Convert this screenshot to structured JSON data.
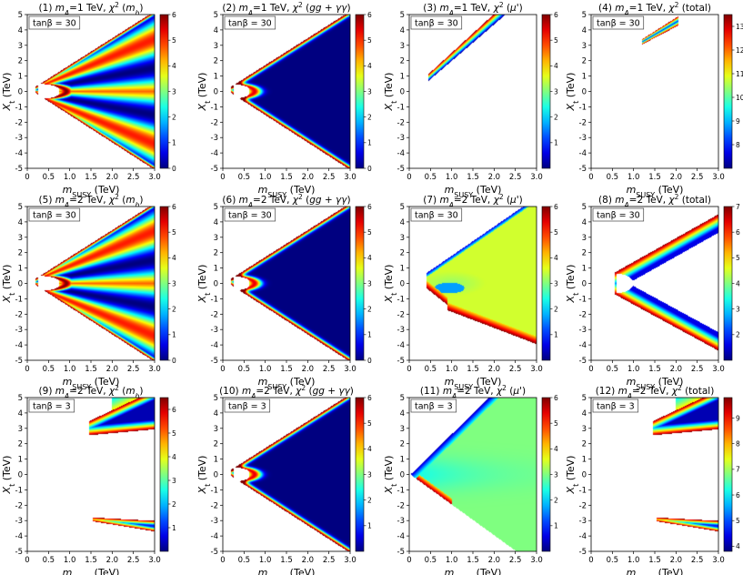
{
  "chart_data": [
    {
      "type": "heatmap",
      "title": "(1) m_A=1 TeV, χ² (m_h)",
      "title_parts": [
        "(1) ",
        "m",
        "A",
        "=1 TeV, ",
        "χ",
        "2",
        " (",
        "m",
        "h",
        ")"
      ],
      "annotation": "tanβ = 30",
      "xlabel_parts": [
        "m",
        "SUSY",
        " (TeV)"
      ],
      "ylabel_parts": [
        "X",
        "t",
        " (TeV)"
      ],
      "xlim": [
        0,
        3
      ],
      "ylim": [
        -5,
        5
      ],
      "xticks": [
        "0",
        "0.5",
        "1.0",
        "1.5",
        "2.0",
        "2.5",
        "3.0"
      ],
      "yticks": [
        "-5",
        "-4",
        "-3",
        "-2",
        "-1",
        "0",
        "1",
        "2",
        "3",
        "4",
        "5"
      ],
      "colorbar": {
        "min": 0,
        "max": 6,
        "ticks": [
          "0",
          "1",
          "2",
          "3",
          "4",
          "5",
          "6"
        ]
      },
      "pattern": "mh_large"
    },
    {
      "type": "heatmap",
      "title": "(2) m_A=1 TeV, χ² (gg+γγ)",
      "title_parts": [
        "(2) ",
        "m",
        "A",
        "=1 TeV, ",
        "χ",
        "2",
        " (",
        "gg + γγ",
        ")"
      ],
      "annotation": "tanβ = 30",
      "xlabel_parts": [
        "m",
        "SUSY",
        " (TeV)"
      ],
      "ylabel_parts": [
        "X",
        "t",
        " (TeV)"
      ],
      "xlim": [
        0,
        3
      ],
      "ylim": [
        -5,
        5
      ],
      "xticks": [
        "0",
        "0.5",
        "1.0",
        "1.5",
        "2.0",
        "2.5",
        "3.0"
      ],
      "yticks": [
        "-5",
        "-4",
        "-3",
        "-2",
        "-1",
        "0",
        "1",
        "2",
        "3",
        "4",
        "5"
      ],
      "colorbar": {
        "min": 0,
        "max": 6,
        "ticks": [
          "0",
          "1",
          "2",
          "3",
          "4",
          "5",
          "6"
        ]
      },
      "pattern": "gg"
    },
    {
      "type": "heatmap",
      "title": "(3) m_A=1 TeV, χ² (μ')",
      "title_parts": [
        "(3) ",
        "m",
        "A",
        "=1 TeV, ",
        "χ",
        "2",
        " (",
        "μ'",
        ")"
      ],
      "annotation": "tanβ = 30",
      "xlabel_parts": [
        "m",
        "SUSY",
        " (TeV)"
      ],
      "ylabel_parts": [
        "X",
        "t",
        " (TeV)"
      ],
      "xlim": [
        0,
        3
      ],
      "ylim": [
        -5,
        5
      ],
      "xticks": [
        "0",
        "0.5",
        "1.0",
        "1.5",
        "2.0",
        "2.5",
        "3.0"
      ],
      "yticks": [
        "-5",
        "-4",
        "-3",
        "-2",
        "-1",
        "0",
        "1",
        "2",
        "3",
        "4",
        "5"
      ],
      "colorbar": {
        "min": 0,
        "max": 6,
        "ticks": [
          "1",
          "2",
          "3",
          "4",
          "5",
          "6"
        ]
      },
      "pattern": "mu_narrow"
    },
    {
      "type": "heatmap",
      "title": "(4) m_A=1 TeV, χ² (total)",
      "title_parts": [
        "(4) ",
        "m",
        "A",
        "=1 TeV, ",
        "χ",
        "2",
        " (total)"
      ],
      "annotation": "tanβ = 30",
      "xlabel_parts": [
        "m",
        "SUSY",
        " (TeV)"
      ],
      "ylabel_parts": [
        "X",
        "t",
        " (TeV)"
      ],
      "xlim": [
        0,
        3
      ],
      "ylim": [
        -5,
        5
      ],
      "xticks": [
        "0",
        "0.5",
        "1.0",
        "1.5",
        "2.0",
        "2.5",
        "3.0"
      ],
      "yticks": [
        "-5",
        "-4",
        "-3",
        "-2",
        "-1",
        "0",
        "1",
        "2",
        "3",
        "4",
        "5"
      ],
      "colorbar": {
        "min": 7,
        "max": 13.5,
        "ticks": [
          "8",
          "9",
          "10",
          "11",
          "12",
          "13"
        ]
      },
      "pattern": "total_tiny"
    },
    {
      "type": "heatmap",
      "title": "(5) m_A=2 TeV, χ² (m_h)",
      "title_parts": [
        "(5) ",
        "m",
        "A",
        "=2 TeV, ",
        "χ",
        "2",
        " (",
        "m",
        "h",
        ")"
      ],
      "annotation": "tanβ = 30",
      "xlabel_parts": [
        "m",
        "SUSY",
        " (TeV)"
      ],
      "ylabel_parts": [
        "X",
        "t",
        " (TeV)"
      ],
      "xlim": [
        0,
        3
      ],
      "ylim": [
        -5,
        5
      ],
      "xticks": [
        "0",
        "0.5",
        "1.0",
        "1.5",
        "2.0",
        "2.5",
        "3.0"
      ],
      "yticks": [
        "-5",
        "-4",
        "-3",
        "-2",
        "-1",
        "0",
        "1",
        "2",
        "3",
        "4",
        "5"
      ],
      "colorbar": {
        "min": 0,
        "max": 6,
        "ticks": [
          "0",
          "1",
          "2",
          "3",
          "4",
          "5",
          "6"
        ]
      },
      "pattern": "mh_large"
    },
    {
      "type": "heatmap",
      "title": "(6) m_A=2 TeV, χ² (gg+γγ)",
      "title_parts": [
        "(6) ",
        "m",
        "A",
        "=2 TeV, ",
        "χ",
        "2",
        " (",
        "gg + γγ",
        ")"
      ],
      "annotation": "tanβ = 30",
      "xlabel_parts": [
        "m",
        "SUSY",
        " (TeV)"
      ],
      "ylabel_parts": [
        "X",
        "t",
        " (TeV)"
      ],
      "xlim": [
        0,
        3
      ],
      "ylim": [
        -5,
        5
      ],
      "xticks": [
        "0",
        "0.5",
        "1.0",
        "1.5",
        "2.0",
        "2.5",
        "3.0"
      ],
      "yticks": [
        "-5",
        "-4",
        "-3",
        "-2",
        "-1",
        "0",
        "1",
        "2",
        "3",
        "4",
        "5"
      ],
      "colorbar": {
        "min": 0,
        "max": 6,
        "ticks": [
          "0",
          "1",
          "2",
          "3",
          "4",
          "5",
          "6"
        ]
      },
      "pattern": "gg"
    },
    {
      "type": "heatmap",
      "title": "(7) m_A=2 TeV, χ² (μ')",
      "title_parts": [
        "(7) ",
        "m",
        "A",
        "=2 TeV, ",
        "χ",
        "2",
        " (",
        "μ'",
        ")"
      ],
      "annotation": "tanβ = 30",
      "xlabel_parts": [
        "m",
        "SUSY",
        " (TeV)"
      ],
      "ylabel_parts": [
        "X",
        "t",
        " (TeV)"
      ],
      "xlim": [
        0,
        3
      ],
      "ylim": [
        -5,
        5
      ],
      "xticks": [
        "0",
        "0.5",
        "1.0",
        "1.5",
        "2.0",
        "2.5",
        "3.0"
      ],
      "yticks": [
        "-5",
        "-4",
        "-3",
        "-2",
        "-1",
        "0",
        "1",
        "2",
        "3",
        "4",
        "5"
      ],
      "colorbar": {
        "min": 0,
        "max": 6,
        "ticks": [
          "1",
          "2",
          "3",
          "4",
          "5",
          "6"
        ]
      },
      "pattern": "mu_wide"
    },
    {
      "type": "heatmap",
      "title": "(8) m_A=2 TeV, χ² (total)",
      "title_parts": [
        "(8) ",
        "m",
        "A",
        "=2 TeV, ",
        "χ",
        "2",
        " (total)"
      ],
      "annotation": "tanβ = 30",
      "xlabel_parts": [
        "m",
        "SUSY",
        " (TeV)"
      ],
      "ylabel_parts": [
        "X",
        "t",
        " (TeV)"
      ],
      "xlim": [
        0,
        3
      ],
      "ylim": [
        -5,
        5
      ],
      "xticks": [
        "0",
        "0.5",
        "1.0",
        "1.5",
        "2.0",
        "2.5",
        "3.0"
      ],
      "yticks": [
        "-5",
        "-4",
        "-3",
        "-2",
        "-1",
        "0",
        "1",
        "2",
        "3",
        "4",
        "5"
      ],
      "colorbar": {
        "min": 1,
        "max": 7,
        "ticks": [
          "2",
          "3",
          "4",
          "5",
          "6",
          "7"
        ]
      },
      "pattern": "total_wide"
    },
    {
      "type": "heatmap",
      "title": "(9) m_A=2 TeV, χ² (m_h)",
      "title_parts": [
        "(9) ",
        "m",
        "A",
        "=2 TeV, ",
        "χ",
        "2",
        " (",
        "m",
        "h",
        ")"
      ],
      "annotation": "tanβ = 3",
      "xlabel_parts": [
        "m",
        "SUSY",
        " (TeV)"
      ],
      "ylabel_parts": [
        "X",
        "t",
        " (TeV)"
      ],
      "xlim": [
        0,
        3
      ],
      "ylim": [
        -5,
        5
      ],
      "xticks": [
        "0",
        "0.5",
        "1.0",
        "1.5",
        "2.0",
        "2.5",
        "3.0"
      ],
      "yticks": [
        "-5",
        "-4",
        "-3",
        "-2",
        "-1",
        "0",
        "1",
        "2",
        "3",
        "4",
        "5"
      ],
      "colorbar": {
        "min": 0,
        "max": 6.5,
        "ticks": [
          "1",
          "2",
          "3",
          "4",
          "5",
          "6"
        ]
      },
      "pattern": "lowtan_tips"
    },
    {
      "type": "heatmap",
      "title": "(10) m_A=2 TeV, χ² (gg+γγ)",
      "title_parts": [
        "(10) ",
        "m",
        "A",
        "=2 TeV, ",
        "χ",
        "2",
        " (",
        "gg + γγ",
        ")"
      ],
      "annotation": "tanβ = 3",
      "xlabel_parts": [
        "m",
        "SUSY",
        " (TeV)"
      ],
      "ylabel_parts": [
        "X",
        "t",
        " (TeV)"
      ],
      "xlim": [
        0,
        3
      ],
      "ylim": [
        -5,
        5
      ],
      "xticks": [
        "0",
        "0.5",
        "1.0",
        "1.5",
        "2.0",
        "2.5",
        "3.0"
      ],
      "yticks": [
        "-5",
        "-4",
        "-3",
        "-2",
        "-1",
        "0",
        "1",
        "2",
        "3",
        "4",
        "5"
      ],
      "colorbar": {
        "min": 0,
        "max": 6,
        "ticks": [
          "1",
          "2",
          "3",
          "4",
          "5",
          "6"
        ]
      },
      "pattern": "gg"
    },
    {
      "type": "heatmap",
      "title": "(11) m_A=2 TeV, χ² (μ')",
      "title_parts": [
        "(11) ",
        "m",
        "A",
        "=2 TeV, ",
        "χ",
        "2",
        " (",
        "μ'",
        ")"
      ],
      "annotation": "tanβ = 3",
      "xlabel_parts": [
        "m",
        "SUSY",
        " (TeV)"
      ],
      "ylabel_parts": [
        "X",
        "t",
        " (TeV)"
      ],
      "xlim": [
        0,
        3
      ],
      "ylim": [
        -5,
        5
      ],
      "xticks": [
        "0",
        "0.5",
        "1.0",
        "1.5",
        "2.0",
        "2.5",
        "3.0"
      ],
      "yticks": [
        "-5",
        "-4",
        "-3",
        "-2",
        "-1",
        "0",
        "1",
        "2",
        "3",
        "4",
        "5"
      ],
      "colorbar": {
        "min": 0,
        "max": 6,
        "ticks": [
          "1",
          "2",
          "3",
          "4",
          "5",
          "6"
        ]
      },
      "pattern": "mu_cone"
    },
    {
      "type": "heatmap",
      "title": "(12) m_A=2 TeV, χ² (total)",
      "title_parts": [
        "(12) ",
        "m",
        "A",
        "=2 TeV, ",
        "χ",
        "2",
        " (total)"
      ],
      "annotation": "tanβ = 3",
      "xlabel_parts": [
        "m",
        "SUSY",
        " (TeV)"
      ],
      "ylabel_parts": [
        "X",
        "t",
        " (TeV)"
      ],
      "xlim": [
        0,
        3
      ],
      "ylim": [
        -5,
        5
      ],
      "xticks": [
        "0",
        "0.5",
        "1.0",
        "1.5",
        "2.0",
        "2.5",
        "3.0"
      ],
      "yticks": [
        "-5",
        "-4",
        "-3",
        "-2",
        "-1",
        "0",
        "1",
        "2",
        "3",
        "4",
        "5"
      ],
      "colorbar": {
        "min": 3.8,
        "max": 9.8,
        "ticks": [
          "4",
          "5",
          "6",
          "7",
          "8",
          "9"
        ]
      },
      "pattern": "lowtan_tips"
    }
  ],
  "colormap": "jet"
}
